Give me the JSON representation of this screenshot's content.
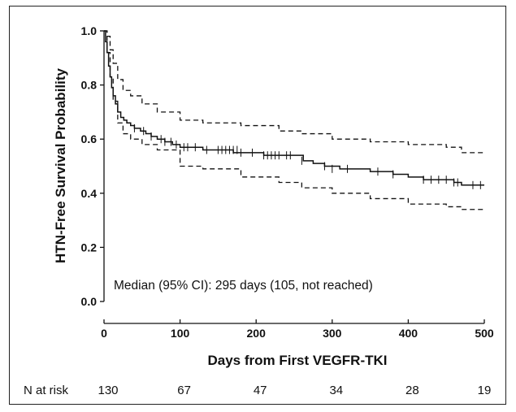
{
  "chart_data": {
    "type": "line",
    "xlabel": "Days from First VEGFR-TKI",
    "ylabel": "HTN-Free Survival Probability",
    "xlim": [
      0,
      500
    ],
    "ylim": [
      0.0,
      1.0
    ],
    "xticks": [
      0,
      100,
      200,
      300,
      400,
      500
    ],
    "xtick_labels": [
      "0",
      "100",
      "200",
      "300",
      "400",
      "500"
    ],
    "yticks": [
      0.0,
      0.2,
      0.4,
      0.6,
      0.8,
      1.0
    ],
    "ytick_labels": [
      "0.0",
      "0.2",
      "0.4",
      "0.6",
      "0.8",
      "1.0"
    ],
    "grid": false,
    "annotation": "Median (95% CI): 295 days (105, not reached)",
    "series": [
      {
        "role": "estimate",
        "style": "solid",
        "x": [
          0,
          2,
          4,
          6,
          8,
          10,
          12,
          15,
          18,
          22,
          26,
          30,
          35,
          40,
          48,
          55,
          62,
          70,
          80,
          90,
          100,
          115,
          130,
          150,
          170,
          190,
          210,
          230,
          250,
          262,
          275,
          290,
          310,
          330,
          350,
          380,
          400,
          420,
          440,
          460,
          470,
          500
        ],
        "y": [
          1.0,
          0.96,
          0.92,
          0.87,
          0.83,
          0.79,
          0.76,
          0.73,
          0.7,
          0.68,
          0.67,
          0.66,
          0.65,
          0.64,
          0.63,
          0.62,
          0.61,
          0.6,
          0.59,
          0.58,
          0.57,
          0.57,
          0.56,
          0.56,
          0.55,
          0.55,
          0.54,
          0.54,
          0.54,
          0.52,
          0.51,
          0.5,
          0.49,
          0.49,
          0.48,
          0.47,
          0.46,
          0.45,
          0.45,
          0.44,
          0.43,
          0.43
        ]
      },
      {
        "role": "upper-ci",
        "style": "dashed",
        "x": [
          0,
          4,
          8,
          12,
          18,
          25,
          35,
          50,
          70,
          100,
          130,
          180,
          230,
          260,
          300,
          350,
          400,
          450,
          470,
          500
        ],
        "y": [
          1.0,
          0.98,
          0.93,
          0.88,
          0.82,
          0.78,
          0.76,
          0.73,
          0.7,
          0.67,
          0.66,
          0.65,
          0.63,
          0.62,
          0.6,
          0.59,
          0.58,
          0.57,
          0.55,
          0.55
        ]
      },
      {
        "role": "lower-ci",
        "style": "dashed",
        "x": [
          0,
          4,
          8,
          12,
          18,
          25,
          35,
          50,
          70,
          100,
          130,
          180,
          230,
          260,
          300,
          350,
          400,
          450,
          470,
          500
        ],
        "y": [
          1.0,
          0.92,
          0.83,
          0.74,
          0.66,
          0.62,
          0.6,
          0.58,
          0.56,
          0.5,
          0.49,
          0.46,
          0.44,
          0.42,
          0.4,
          0.38,
          0.36,
          0.35,
          0.34,
          0.34
        ]
      }
    ],
    "censor_marks": {
      "x": [
        40,
        52,
        62,
        75,
        80,
        88,
        95,
        105,
        110,
        120,
        135,
        150,
        155,
        160,
        165,
        170,
        175,
        180,
        195,
        210,
        215,
        220,
        225,
        230,
        240,
        245,
        260,
        290,
        300,
        320,
        360,
        380,
        420,
        430,
        440,
        450,
        460,
        465,
        485,
        495
      ],
      "y": [
        0.64,
        0.63,
        0.61,
        0.6,
        0.59,
        0.59,
        0.58,
        0.57,
        0.57,
        0.57,
        0.56,
        0.56,
        0.56,
        0.56,
        0.56,
        0.56,
        0.56,
        0.55,
        0.55,
        0.54,
        0.54,
        0.54,
        0.54,
        0.54,
        0.54,
        0.54,
        0.52,
        0.5,
        0.49,
        0.49,
        0.48,
        0.47,
        0.45,
        0.45,
        0.45,
        0.45,
        0.44,
        0.44,
        0.43,
        0.43
      ]
    },
    "risk_table": {
      "label": "N at risk",
      "days": [
        0,
        100,
        200,
        300,
        400,
        500
      ],
      "counts": [
        "130",
        "67",
        "47",
        "34",
        "28",
        "19"
      ]
    }
  }
}
